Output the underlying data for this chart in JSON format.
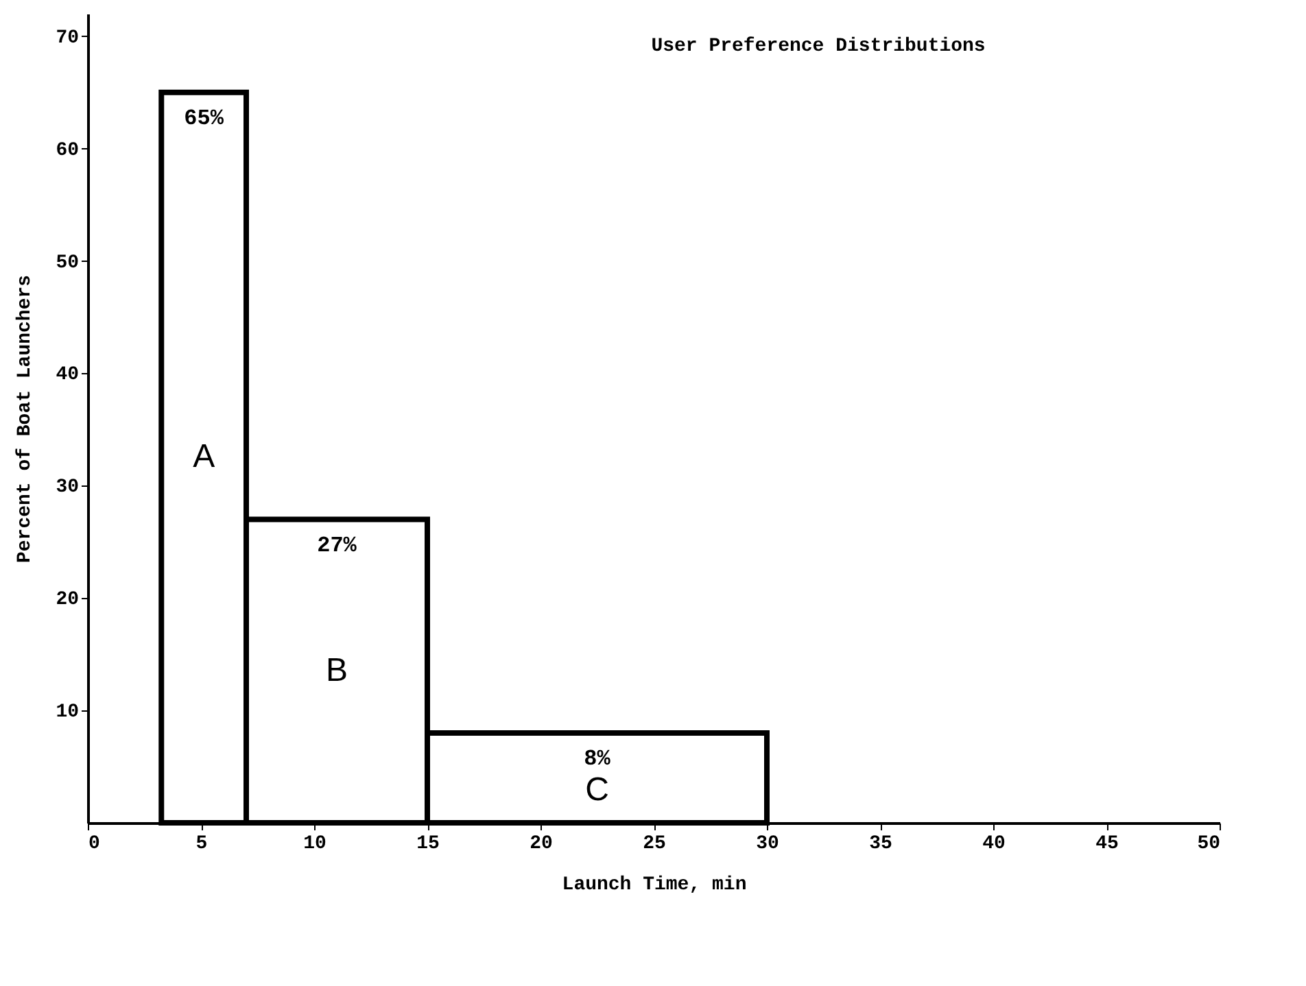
{
  "chart_data": {
    "type": "histogram",
    "title": "User Preference Distributions",
    "xlabel": "Launch Time, min",
    "ylabel": "Percent of Boat Launchers",
    "bins": [
      3.25,
      7,
      15,
      30
    ],
    "values": [
      65,
      27,
      8
    ],
    "color": "#000000",
    "value_labels": [
      "65%",
      "27%",
      "8%"
    ],
    "annotations": [
      "A",
      "B",
      "C"
    ],
    "xlim": [
      0,
      50
    ],
    "xticks": [
      0,
      5,
      10,
      15,
      20,
      25,
      30,
      35,
      40,
      45,
      50
    ],
    "ylim": [
      0,
      72
    ],
    "yticks": [
      10,
      20,
      30,
      40,
      50,
      60,
      70
    ],
    "grid": false
  }
}
